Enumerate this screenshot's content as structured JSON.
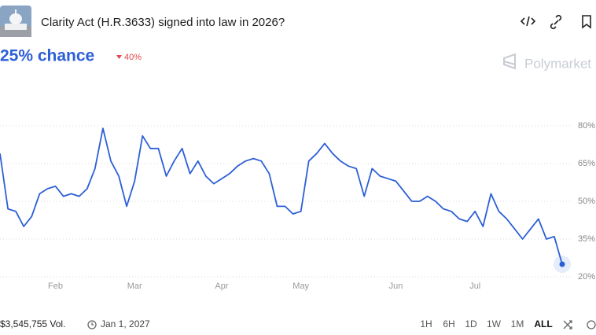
{
  "header": {
    "title": "Clarity Act (H.R.3633) signed into law in 2026?",
    "chance": "25% chance",
    "change": "40%",
    "brand": "Polymarket"
  },
  "footer": {
    "volume": "$3,545,755 Vol.",
    "end_date": "Jan 1, 2027",
    "ranges": [
      "1H",
      "6H",
      "1D",
      "1W",
      "1M",
      "ALL"
    ]
  },
  "chart_data": {
    "type": "line",
    "color": "#2c5fd6",
    "grid": true,
    "categories": [
      null,
      null,
      null,
      null,
      null,
      null,
      null,
      "Feb",
      null,
      null,
      null,
      null,
      null,
      null,
      null,
      null,
      null,
      "Mar",
      null,
      null,
      null,
      null,
      null,
      null,
      null,
      null,
      null,
      null,
      "Apr",
      null,
      null,
      null,
      null,
      null,
      null,
      null,
      null,
      null,
      "May",
      null,
      null,
      null,
      null,
      null,
      null,
      null,
      null,
      null,
      null,
      null,
      "Jun",
      null,
      null,
      null,
      null,
      null,
      null,
      null,
      null,
      null,
      "Jul",
      null,
      null,
      null,
      null,
      null,
      null,
      null,
      null,
      null,
      null,
      null
    ],
    "values": [
      69,
      47,
      46,
      40,
      44,
      53,
      55,
      56,
      52,
      53,
      52,
      55,
      63,
      79,
      66,
      60,
      48,
      58,
      76,
      71,
      71,
      60,
      66,
      71,
      61,
      66,
      60,
      57,
      59,
      61,
      64,
      66,
      67,
      66,
      61,
      48,
      48,
      45,
      46,
      66,
      69,
      73,
      69,
      66,
      64,
      63,
      52,
      63,
      60,
      59,
      58,
      54,
      50,
      50,
      52,
      50,
      47,
      46,
      43,
      42,
      46,
      40,
      53,
      46,
      43,
      39,
      35,
      39,
      43,
      35,
      36,
      25
    ],
    "ylim": [
      17,
      83
    ],
    "yticks": [
      {
        "value": 20,
        "label": "20%"
      },
      {
        "value": 35,
        "label": "35%"
      },
      {
        "value": 50,
        "label": "50%"
      },
      {
        "value": 65,
        "label": "65%"
      },
      {
        "value": 80,
        "label": "80%"
      }
    ]
  }
}
